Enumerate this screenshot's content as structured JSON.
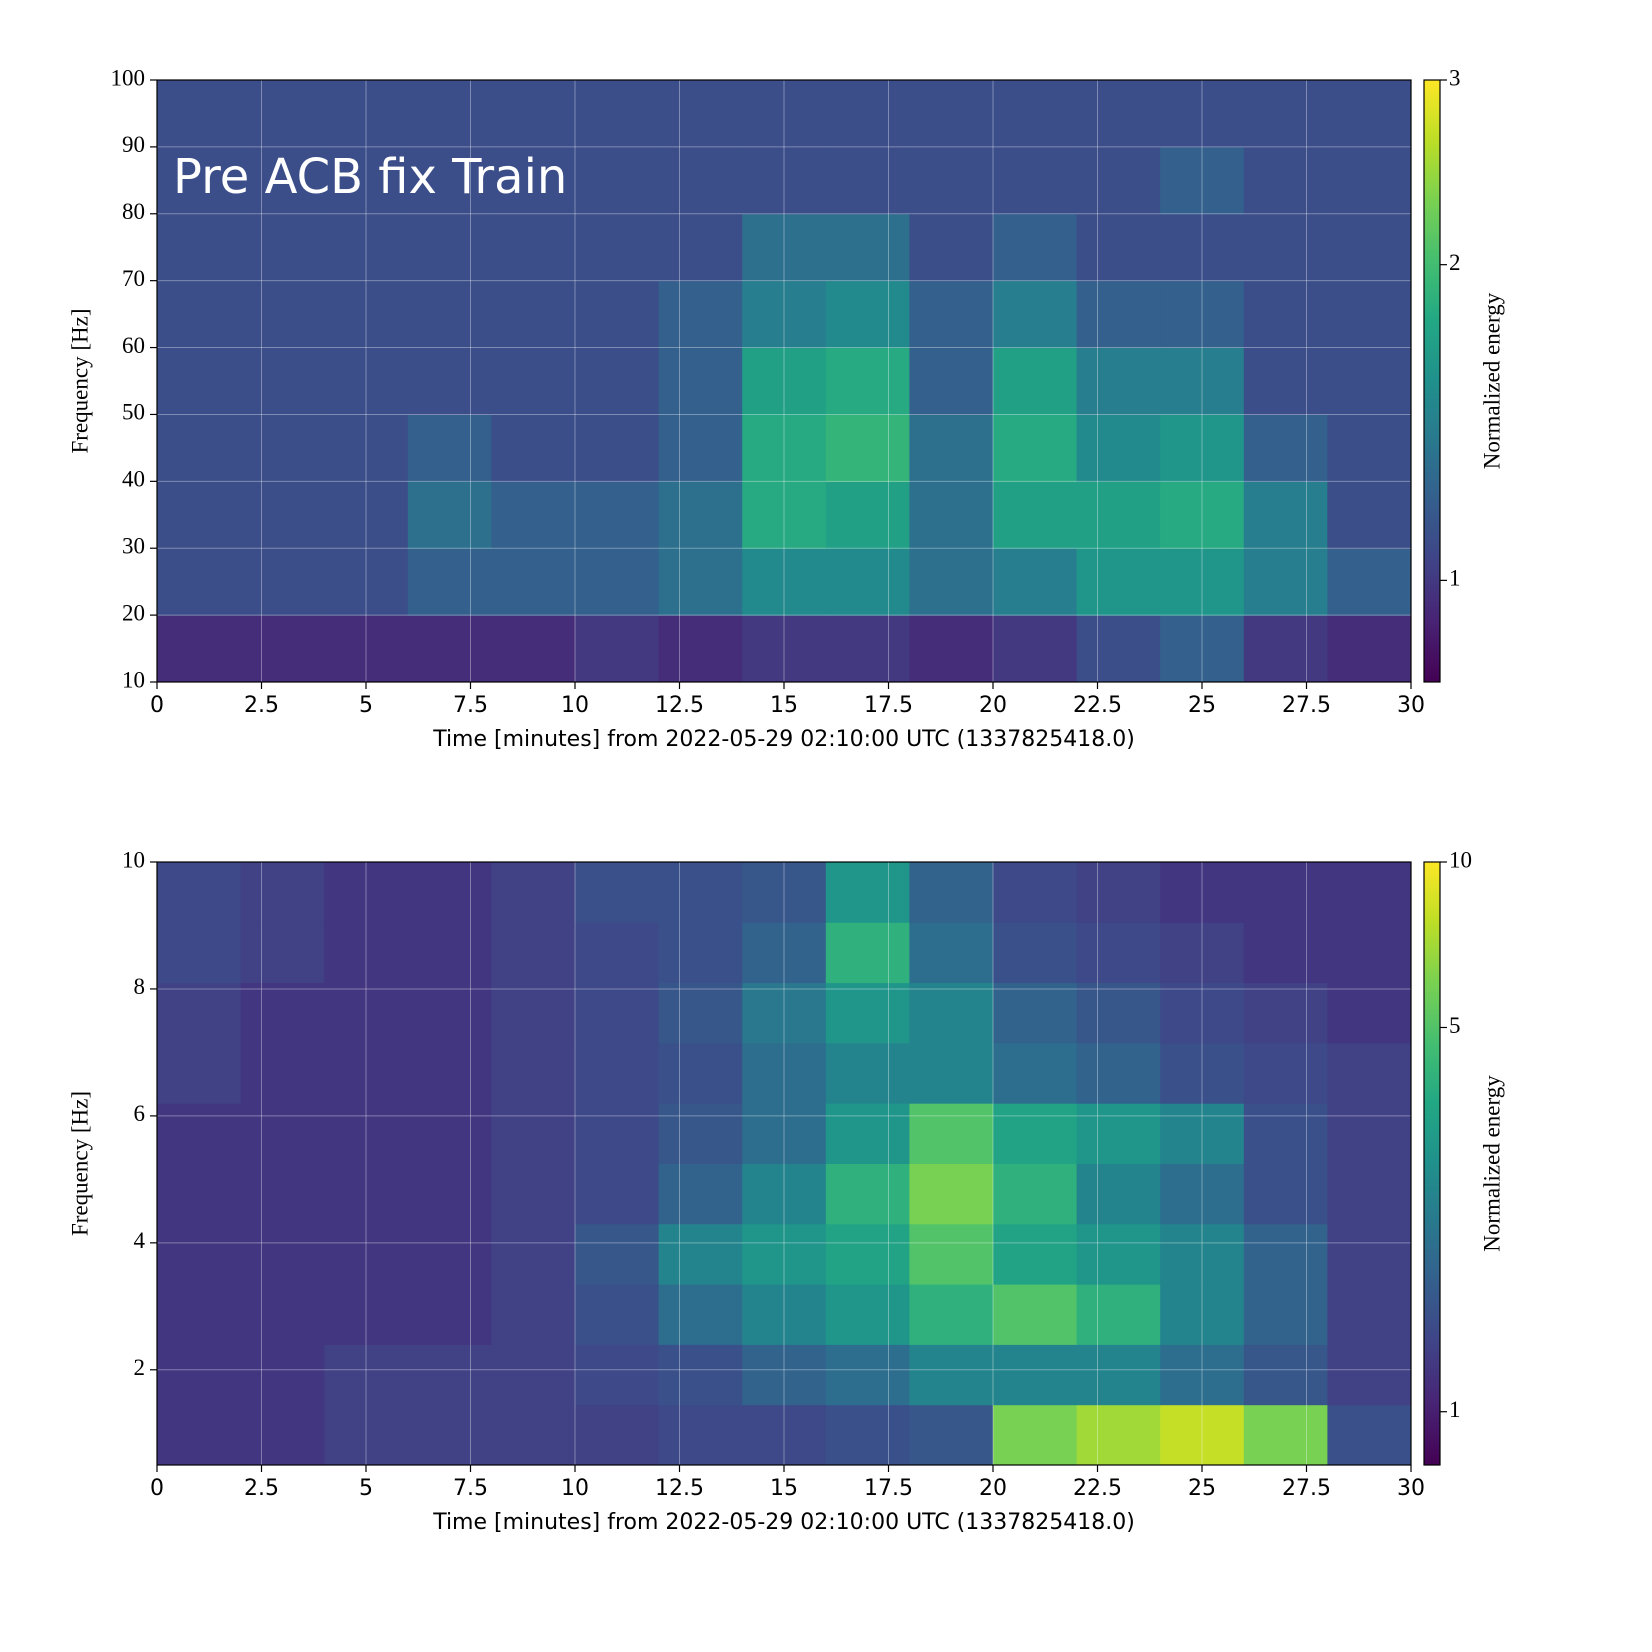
{
  "chart_data": [
    {
      "type": "heatmap",
      "annotation": "Pre ACB fix Train",
      "xlabel": "Time [minutes] from 2022-05-29 02:10:00 UTC (1337825418.0)",
      "ylabel": "Frequency [Hz]",
      "colorbar_label": "Normalized energy",
      "cmap": "viridis",
      "color_scale": "log",
      "grid": true,
      "xlim": [
        0,
        30
      ],
      "xticks": [
        0,
        2.5,
        5,
        7.5,
        10,
        12.5,
        15,
        17.5,
        20,
        22.5,
        25,
        27.5,
        30
      ],
      "ylim": [
        10,
        100
      ],
      "yticks": [
        10,
        20,
        30,
        40,
        50,
        60,
        70,
        80,
        90,
        100
      ],
      "clim": [
        0.8,
        3
      ],
      "cticks": [
        1,
        2,
        3
      ],
      "z": [
        [
          0.95,
          0.95,
          0.95,
          0.95,
          0.95,
          1.0,
          0.95,
          1.0,
          1.0,
          0.95,
          1.0,
          1.1,
          1.2,
          1.0,
          0.95
        ],
        [
          1.1,
          1.1,
          1.1,
          1.2,
          1.2,
          1.2,
          1.3,
          1.5,
          1.5,
          1.3,
          1.4,
          1.6,
          1.6,
          1.4,
          1.2
        ],
        [
          1.1,
          1.1,
          1.1,
          1.3,
          1.2,
          1.2,
          1.3,
          1.8,
          1.7,
          1.3,
          1.7,
          1.7,
          1.8,
          1.4,
          1.1
        ],
        [
          1.1,
          1.1,
          1.1,
          1.2,
          1.1,
          1.1,
          1.2,
          1.8,
          1.9,
          1.3,
          1.8,
          1.5,
          1.6,
          1.2,
          1.1
        ],
        [
          1.1,
          1.1,
          1.1,
          1.1,
          1.1,
          1.1,
          1.2,
          1.7,
          1.8,
          1.2,
          1.7,
          1.4,
          1.4,
          1.1,
          1.1
        ],
        [
          1.1,
          1.1,
          1.1,
          1.1,
          1.1,
          1.1,
          1.2,
          1.4,
          1.5,
          1.2,
          1.4,
          1.2,
          1.2,
          1.1,
          1.1
        ],
        [
          1.1,
          1.1,
          1.1,
          1.1,
          1.1,
          1.1,
          1.1,
          1.3,
          1.3,
          1.1,
          1.2,
          1.1,
          1.1,
          1.1,
          1.1
        ],
        [
          1.1,
          1.1,
          1.1,
          1.1,
          1.1,
          1.1,
          1.1,
          1.1,
          1.1,
          1.1,
          1.1,
          1.1,
          1.2,
          1.1,
          1.1
        ],
        [
          1.1,
          1.1,
          1.1,
          1.1,
          1.1,
          1.1,
          1.1,
          1.1,
          1.1,
          1.1,
          1.1,
          1.1,
          1.1,
          1.1,
          1.1
        ]
      ]
    },
    {
      "type": "heatmap",
      "xlabel": "Time [minutes] from 2022-05-29 02:10:00 UTC (1337825418.0)",
      "ylabel": "Frequency [Hz]",
      "colorbar_label": "Normalized energy",
      "cmap": "viridis",
      "color_scale": "log",
      "grid": true,
      "xlim": [
        0,
        30
      ],
      "xticks": [
        0,
        2.5,
        5,
        7.5,
        10,
        12.5,
        15,
        17.5,
        20,
        22.5,
        25,
        27.5,
        30
      ],
      "ylim": [
        0.5,
        10
      ],
      "yticks": [
        2,
        4,
        6,
        8,
        10
      ],
      "clim": [
        0.8,
        10
      ],
      "cticks": [
        1,
        5,
        10
      ],
      "z": [
        [
          1.2,
          1.2,
          1.3,
          1.3,
          1.3,
          1.3,
          1.4,
          1.4,
          1.5,
          1.6,
          6,
          7,
          8,
          6,
          1.5
        ],
        [
          1.2,
          1.2,
          1.3,
          1.3,
          1.3,
          1.4,
          1.5,
          1.8,
          2,
          2.5,
          2.5,
          2.5,
          2,
          1.6,
          1.3
        ],
        [
          1.2,
          1.2,
          1.2,
          1.2,
          1.3,
          1.5,
          2.0,
          2.5,
          3,
          4,
          5,
          4,
          2.5,
          1.8,
          1.3
        ],
        [
          1.2,
          1.2,
          1.2,
          1.2,
          1.3,
          1.6,
          2.5,
          3,
          3.5,
          5,
          3.5,
          3,
          2.5,
          1.8,
          1.3
        ],
        [
          1.2,
          1.2,
          1.2,
          1.2,
          1.3,
          1.4,
          1.8,
          2.5,
          4,
          6,
          4,
          2.5,
          2,
          1.5,
          1.3
        ],
        [
          1.2,
          1.2,
          1.2,
          1.2,
          1.3,
          1.4,
          1.6,
          2,
          3,
          5,
          3.5,
          3,
          2.5,
          1.5,
          1.3
        ],
        [
          1.3,
          1.2,
          1.2,
          1.2,
          1.3,
          1.4,
          1.5,
          2,
          2.5,
          2.5,
          2,
          1.8,
          1.5,
          1.4,
          1.3
        ],
        [
          1.3,
          1.2,
          1.2,
          1.2,
          1.3,
          1.4,
          1.6,
          2.2,
          3,
          2.5,
          1.8,
          1.6,
          1.4,
          1.3,
          1.2
        ],
        [
          1.4,
          1.3,
          1.2,
          1.2,
          1.3,
          1.4,
          1.5,
          1.8,
          4,
          2,
          1.5,
          1.4,
          1.3,
          1.2,
          1.2
        ],
        [
          1.4,
          1.3,
          1.2,
          1.2,
          1.3,
          1.5,
          1.5,
          1.6,
          3,
          1.8,
          1.4,
          1.3,
          1.2,
          1.2,
          1.2
        ]
      ]
    }
  ]
}
